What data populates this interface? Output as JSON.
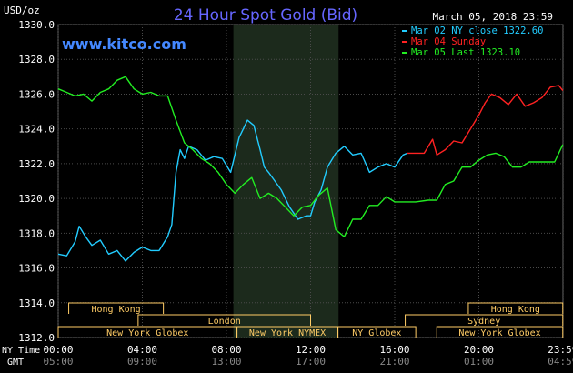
{
  "header": {
    "title": "24 Hour Spot Gold (Bid)",
    "unit": "USD/oz",
    "date": "March 05, 2018 23:59",
    "site": "www.kitco.com"
  },
  "legend": [
    {
      "label": "Mar 02 NY close 1322.60",
      "color": "#22ccff"
    },
    {
      "label": "Mar 04 Sunday",
      "color": "#ff2222"
    },
    {
      "label": "Mar 05 Last 1323.10",
      "color": "#22ee22"
    }
  ],
  "colors": {
    "background": "#000000",
    "grid": "#4a4a4a",
    "text": "#ffffff",
    "title": "#6666ff",
    "site": "#4488ff",
    "session_shade": "#1c2a1c",
    "market_box": "#ffcc66"
  },
  "time_axis": {
    "row1_label": "NY Time",
    "row2_label": "GMT",
    "ny_ticks": [
      "00:00",
      "04:00",
      "08:00",
      "12:00",
      "16:00",
      "20:00",
      "23:59"
    ],
    "gmt_ticks": [
      "05:00",
      "09:00",
      "13:00",
      "17:00",
      "21:00",
      "01:00",
      "04:59"
    ]
  },
  "markets": [
    {
      "name": "Hong Kong",
      "start": 0.5,
      "end": 5.0,
      "row": 1
    },
    {
      "name": "London",
      "start": 3.8,
      "end": 12.0,
      "row": 2
    },
    {
      "name": "New York Globex",
      "start": 0,
      "end": 8.5,
      "row": 3
    },
    {
      "name": "New York NYMEX",
      "start": 8.5,
      "end": 13.3,
      "row": 3
    },
    {
      "name": "NY Globex",
      "start": 13.3,
      "end": 17.0,
      "row": 3
    },
    {
      "name": "Hong Kong",
      "start": 19.5,
      "end": 23.99,
      "row": 1
    },
    {
      "name": "Sydney",
      "start": 16.5,
      "end": 23.99,
      "row": 2
    },
    {
      "name": "New York Globex",
      "start": 18.0,
      "end": 23.99,
      "row": 3
    }
  ],
  "chart_data": {
    "type": "line",
    "title": "24 Hour Spot Gold (Bid)",
    "ylabel": "USD/oz",
    "ylim": [
      1312,
      1330
    ],
    "xlim": [
      0,
      24
    ],
    "yticks": [
      "1312.0",
      "1314.0",
      "1316.0",
      "1318.0",
      "1320.0",
      "1322.0",
      "1324.0",
      "1326.0",
      "1328.0",
      "1330.0"
    ],
    "shaded_session": [
      8.33,
      13.33
    ],
    "grid": true,
    "legend_position": "top-right",
    "series": [
      {
        "name": "Mar 02 NY close 1322.60",
        "color": "#22ccff",
        "x": [
          0,
          0.4,
          0.8,
          1.0,
          1.3,
          1.6,
          2.0,
          2.4,
          2.8,
          3.2,
          3.6,
          4.0,
          4.4,
          4.8,
          5.2,
          5.4,
          5.5,
          5.6,
          5.8,
          6.0,
          6.2,
          6.6,
          7.0,
          7.4,
          7.8,
          8.2,
          8.6,
          9.0,
          9.3,
          9.6,
          9.8,
          10.0,
          10.3,
          10.6,
          11.0,
          11.4,
          11.8,
          12.0,
          12.2,
          12.5,
          12.8,
          13.2,
          13.6,
          14.0,
          14.4,
          14.8,
          15.2,
          15.6,
          16.0,
          16.4,
          16.6
        ],
        "y": [
          1316.8,
          1316.7,
          1317.5,
          1318.4,
          1317.8,
          1317.3,
          1317.6,
          1316.8,
          1317.0,
          1316.4,
          1316.9,
          1317.2,
          1317.0,
          1317.0,
          1317.8,
          1318.5,
          1320.0,
          1321.5,
          1322.8,
          1322.3,
          1323.0,
          1322.8,
          1322.2,
          1322.4,
          1322.3,
          1321.5,
          1323.5,
          1324.5,
          1324.2,
          1322.8,
          1321.8,
          1321.5,
          1321.0,
          1320.5,
          1319.5,
          1318.8,
          1319.0,
          1319.0,
          1319.8,
          1320.5,
          1321.8,
          1322.6,
          1323.0,
          1322.5,
          1322.6,
          1321.5,
          1321.8,
          1322.0,
          1321.8,
          1322.5,
          1322.6
        ]
      },
      {
        "name": "Mar 04 Sunday",
        "color": "#ff2222",
        "x": [
          16.6,
          17.4,
          17.8,
          18.0,
          18.4,
          18.8,
          19.2,
          19.6,
          20.0,
          20.3,
          20.6,
          21.0,
          21.4,
          21.8,
          22.2,
          22.6,
          23.0,
          23.4,
          23.8,
          23.99
        ],
        "y": [
          1322.6,
          1322.6,
          1323.4,
          1322.5,
          1322.8,
          1323.3,
          1323.2,
          1324.0,
          1324.8,
          1325.5,
          1326.0,
          1325.8,
          1325.4,
          1326.0,
          1325.3,
          1325.5,
          1325.8,
          1326.4,
          1326.5,
          1326.2
        ]
      },
      {
        "name": "Mar 05 Last 1323.10",
        "color": "#22ee22",
        "x": [
          0,
          0.4,
          0.8,
          1.2,
          1.6,
          2.0,
          2.4,
          2.8,
          3.2,
          3.6,
          4.0,
          4.4,
          4.8,
          5.2,
          5.6,
          6.0,
          6.4,
          6.8,
          7.2,
          7.6,
          8.0,
          8.4,
          8.8,
          9.2,
          9.6,
          10.0,
          10.4,
          10.8,
          11.2,
          11.6,
          12.0,
          12.4,
          12.8,
          13.2,
          13.6,
          14.0,
          14.4,
          14.8,
          15.2,
          15.6,
          16.0,
          16.4,
          17.0,
          17.6,
          18.0,
          18.4,
          18.8,
          19.2,
          19.6,
          20.0,
          20.4,
          20.8,
          21.2,
          21.6,
          22.0,
          22.4,
          22.8,
          23.2,
          23.6,
          23.99
        ],
        "y": [
          1326.3,
          1326.1,
          1325.9,
          1326.0,
          1325.6,
          1326.1,
          1326.3,
          1326.8,
          1327.0,
          1326.3,
          1326.0,
          1326.1,
          1325.9,
          1325.9,
          1324.5,
          1323.2,
          1322.8,
          1322.3,
          1322.0,
          1321.5,
          1320.8,
          1320.3,
          1320.8,
          1321.2,
          1320.0,
          1320.3,
          1320.0,
          1319.5,
          1319.0,
          1319.5,
          1319.6,
          1320.2,
          1320.6,
          1318.2,
          1317.8,
          1318.8,
          1318.8,
          1319.6,
          1319.6,
          1320.1,
          1319.8,
          1319.8,
          1319.8,
          1319.9,
          1319.9,
          1320.8,
          1321.0,
          1321.8,
          1321.8,
          1322.2,
          1322.5,
          1322.6,
          1322.4,
          1321.8,
          1321.8,
          1322.1,
          1322.1,
          1322.1,
          1322.1,
          1323.1
        ]
      }
    ]
  }
}
